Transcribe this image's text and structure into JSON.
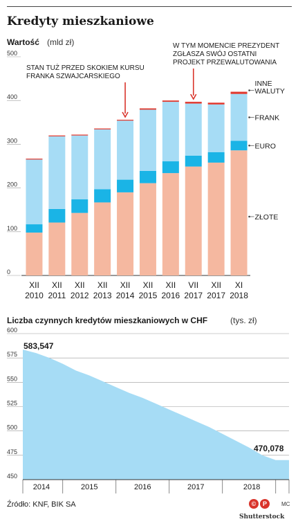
{
  "page": {
    "title": "Kredyty mieszkaniowe",
    "source": "Źródło: KNF, BIK SA",
    "logo1": "©",
    "logo2": "P",
    "author": "MC",
    "credit": "Shutterstock"
  },
  "colors": {
    "zlote": "#f5b8a0",
    "euro": "#1ab4e6",
    "frank": "#a6dcf5",
    "inne": "#e03a30",
    "area": "#a6dcf5",
    "axis": "#555555"
  },
  "chart_data": [
    {
      "type": "bar",
      "stacked": true,
      "title": "Wartość",
      "unit": "(mld zł)",
      "categories": [
        [
          "XII",
          "2010"
        ],
        [
          "XII",
          "2011"
        ],
        [
          "XII",
          "2012"
        ],
        [
          "XII",
          "2013"
        ],
        [
          "XII",
          "2014"
        ],
        [
          "XII",
          "2015"
        ],
        [
          "XII",
          "2016"
        ],
        [
          "VII",
          "2017"
        ],
        [
          "XII",
          "2017"
        ],
        [
          "XI",
          "2018"
        ]
      ],
      "series": [
        {
          "name": "ZŁOTE",
          "values": [
            98,
            121,
            143,
            167,
            190,
            211,
            234,
            249,
            258,
            286
          ]
        },
        {
          "name": "EURO",
          "values": [
            19,
            31,
            31,
            30,
            29,
            28,
            27,
            25,
            24,
            22
          ]
        },
        {
          "name": "FRANK",
          "values": [
            148,
            166,
            146,
            137,
            135,
            140,
            136,
            119,
            109,
            107
          ]
        },
        {
          "name": "INNE WALUTY",
          "values": [
            2,
            2,
            2,
            2,
            2,
            3,
            3,
            4,
            4,
            5
          ]
        }
      ],
      "yticks": [
        0,
        100,
        200,
        300,
        400,
        500
      ],
      "ylim": [
        0,
        500
      ],
      "legend": [
        "INNE\nWALUTY",
        "FRANK",
        "EURO",
        "ZŁOTE"
      ],
      "annotations": [
        {
          "category_index": 4,
          "lines": [
            "STAN TUŻ PRZED SKOKIEM KURSU",
            "FRANKA SZWAJCARSKIEGO"
          ]
        },
        {
          "category_index": 7,
          "lines": [
            "W TYM MOMENCIE PREZYDENT",
            "ZGŁASZA SWÓJ OSTATNI",
            "PROJEKT PRZEWALUTOWANIA"
          ]
        }
      ]
    },
    {
      "type": "area",
      "title": "Liczba czynnych kredytów mieszkaniowych w CHF",
      "unit": "(tys. zł)",
      "x_years": [
        "2014",
        "2015",
        "2016",
        "2017",
        "2018"
      ],
      "x": [
        2013.75,
        2014.0,
        2014.25,
        2014.5,
        2014.75,
        2015.0,
        2015.25,
        2015.5,
        2015.75,
        2016.0,
        2016.25,
        2016.5,
        2016.75,
        2017.0,
        2017.25,
        2017.5,
        2017.75,
        2018.0,
        2018.25,
        2018.5,
        2018.75
      ],
      "y": [
        583.547,
        580,
        575,
        569,
        562,
        557,
        551,
        545,
        539,
        534,
        528,
        522,
        516,
        510,
        504,
        497,
        490,
        483,
        475,
        470.078,
        470.078
      ],
      "start_label": "583,547",
      "end_label": "470,078",
      "yticks": [
        450,
        475,
        500,
        525,
        550,
        575,
        600
      ],
      "ylim": [
        450,
        600
      ]
    }
  ]
}
